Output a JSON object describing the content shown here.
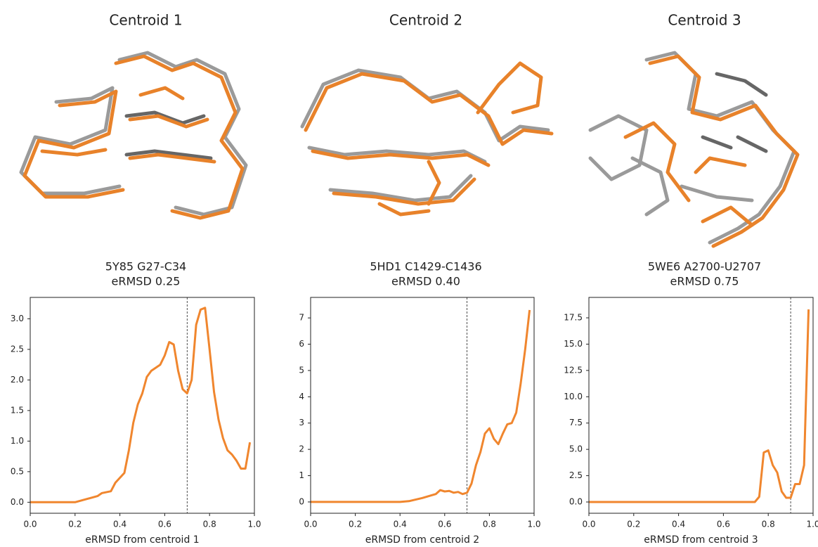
{
  "chart_data": [
    {
      "type": "line",
      "title": "Centroid 1",
      "subtitle": [
        "5Y85 G27-C34",
        "eRMSD 0.25"
      ],
      "xlabel": "eRMSD from centroid 1",
      "x": [
        0,
        0.2,
        0.22,
        0.26,
        0.3,
        0.32,
        0.36,
        0.38,
        0.42,
        0.44,
        0.46,
        0.48,
        0.5,
        0.52,
        0.54,
        0.58,
        0.6,
        0.62,
        0.64,
        0.66,
        0.68,
        0.7,
        0.72,
        0.74,
        0.76,
        0.78,
        0.8,
        0.82,
        0.84,
        0.86,
        0.88,
        0.9,
        0.92,
        0.94,
        0.96,
        0.98
      ],
      "series": [
        {
          "color": "#f0862e",
          "values": [
            0,
            0,
            0.02,
            0.06,
            0.1,
            0.15,
            0.18,
            0.32,
            0.48,
            0.85,
            1.3,
            1.6,
            1.78,
            2.05,
            2.15,
            2.25,
            2.4,
            2.62,
            2.58,
            2.15,
            1.85,
            1.78,
            2.0,
            2.9,
            3.15,
            3.18,
            2.5,
            1.8,
            1.35,
            1.05,
            0.85,
            0.78,
            0.68,
            0.55,
            0.55,
            0.98
          ]
        }
      ],
      "vline": 0.7,
      "xlim": [
        0,
        1
      ],
      "ylim": [
        -0.18,
        3.35
      ],
      "xticks": [
        {
          "value": 0,
          "label": "0.0"
        },
        0.2,
        0.4,
        0.6,
        0.8,
        {
          "value": 1,
          "label": "1.0"
        }
      ],
      "yticks": [
        {
          "value": 0,
          "label": "0.0"
        },
        0.5,
        {
          "value": 1,
          "label": "1.0"
        },
        1.5,
        {
          "value": 2,
          "label": "2.0"
        },
        2.5,
        {
          "value": 3,
          "label": "3.0"
        }
      ]
    },
    {
      "type": "line",
      "title": "Centroid 2",
      "subtitle": [
        "5HD1 C1429-C1436",
        "eRMSD 0.40"
      ],
      "xlabel": "eRMSD from centroid 2",
      "x": [
        0,
        0.4,
        0.44,
        0.5,
        0.54,
        0.56,
        0.58,
        0.6,
        0.62,
        0.64,
        0.66,
        0.68,
        0.7,
        0.72,
        0.74,
        0.76,
        0.78,
        0.8,
        0.82,
        0.84,
        0.86,
        0.88,
        0.9,
        0.92,
        0.94,
        0.96,
        0.98
      ],
      "series": [
        {
          "color": "#f0862e",
          "values": [
            0,
            0,
            0.03,
            0.15,
            0.25,
            0.3,
            0.45,
            0.4,
            0.42,
            0.35,
            0.38,
            0.3,
            0.35,
            0.7,
            1.4,
            1.9,
            2.6,
            2.8,
            2.4,
            2.2,
            2.6,
            2.95,
            3.0,
            3.4,
            4.5,
            5.8,
            7.3
          ]
        }
      ],
      "vline": 0.7,
      "xlim": [
        0,
        1
      ],
      "ylim": [
        -0.43,
        7.78
      ],
      "xticks": [
        {
          "value": 0,
          "label": "0.0"
        },
        0.2,
        0.4,
        0.6,
        0.8,
        {
          "value": 1,
          "label": "1.0"
        }
      ],
      "yticks": [
        0,
        1,
        2,
        3,
        4,
        5,
        6,
        7
      ]
    },
    {
      "type": "line",
      "title": "Centroid 3",
      "subtitle": [
        "5WE6 A2700-U2707",
        "eRMSD 0.75"
      ],
      "xlabel": "eRMSD from centroid 3",
      "x": [
        0,
        0.74,
        0.76,
        0.78,
        0.8,
        0.82,
        0.84,
        0.86,
        0.88,
        0.9,
        0.92,
        0.94,
        0.96,
        0.98
      ],
      "series": [
        {
          "color": "#f0862e",
          "values": [
            0,
            0,
            0.5,
            4.7,
            4.9,
            3.5,
            2.8,
            1.0,
            0.4,
            0.4,
            1.7,
            1.7,
            3.5,
            18.3
          ]
        }
      ],
      "vline": 0.9,
      "xlim": [
        0,
        1
      ],
      "ylim": [
        -1.07,
        19.44
      ],
      "xticks": [
        {
          "value": 0,
          "label": "0.0"
        },
        0.2,
        0.4,
        0.6,
        0.8,
        {
          "value": 1,
          "label": "1.0"
        }
      ],
      "yticks": [
        {
          "value": 0,
          "label": "0.0"
        },
        2.5,
        {
          "value": 5,
          "label": "5.0"
        },
        7.5,
        {
          "value": 10,
          "label": "10.0"
        },
        12.5,
        {
          "value": 15,
          "label": "15.0"
        },
        17.5
      ]
    }
  ]
}
